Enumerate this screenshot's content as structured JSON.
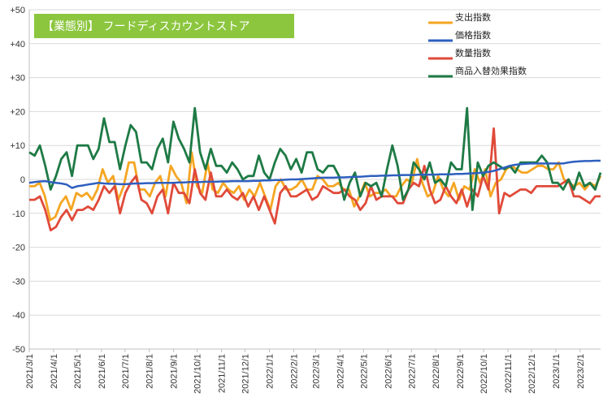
{
  "chart_data": {
    "type": "line",
    "title": "【業態別】 フードディスカウントストア",
    "title_bg": "#8cc63f",
    "ylim": [
      -50,
      50
    ],
    "yticks": [
      "+50",
      "+40",
      "+30",
      "+20",
      "+10",
      "0",
      "-10",
      "-20",
      "-30",
      "-40",
      "-50"
    ],
    "grid": "horizontal",
    "legend_position": "top-right",
    "x_start": "2021-03-01",
    "x_end": "2023-02-27",
    "x_tick_labels": [
      "2021/3/1",
      "2021/4/1",
      "2021/5/1",
      "2021/6/1",
      "2021/7/1",
      "2021/8/1",
      "2021/9/1",
      "2021/10/1",
      "2021/11/1",
      "2021/12/1",
      "2022/1/1",
      "2022/2/1",
      "2022/3/1",
      "2022/4/1",
      "2022/5/1",
      "2022/6/1",
      "2022/7/1",
      "2022/8/1",
      "2022/9/1",
      "2022/10/1",
      "2022/11/1",
      "2022/12/1",
      "2023/1/1",
      "2023/2/1"
    ],
    "series": [
      {
        "name": "支出指数",
        "color": "#f5a623",
        "values": [
          -2,
          -2,
          -1,
          -5,
          -12,
          -11,
          -7,
          -5,
          -9,
          -4,
          -5,
          -4,
          -6,
          -3,
          3,
          -1,
          1,
          -6,
          -2,
          5,
          5,
          -3,
          -3,
          -5,
          -1,
          1,
          -5,
          4,
          1,
          -1,
          -7,
          8,
          -2,
          -4,
          5,
          -3,
          -4,
          -1,
          -3,
          -4,
          -2,
          -6,
          -3,
          -5,
          -1,
          -5,
          -9,
          -2,
          0,
          -3,
          -3,
          -2,
          0,
          -3,
          -3,
          1,
          0,
          -2,
          -2,
          -1,
          -3,
          -3,
          -8,
          -5,
          -1,
          -5,
          -4,
          -4,
          -3,
          -5,
          -5,
          -2,
          0,
          -1,
          6,
          -1,
          -5,
          -4,
          1,
          -3,
          -5,
          -1,
          -6,
          -2,
          -3,
          3,
          -1,
          3,
          -5,
          -1,
          0,
          3,
          4,
          3,
          2,
          2,
          3,
          4,
          4,
          3,
          3,
          5,
          0,
          -1,
          -2,
          -1,
          -3,
          -1,
          -2,
          1
        ]
      },
      {
        "name": "価格指数",
        "color": "#2e5fbf",
        "values": [
          -1,
          -0.8,
          -0.6,
          -0.5,
          -0.8,
          -1,
          -1.2,
          -1.5,
          -2.5,
          -2,
          -1.8,
          -1.5,
          -1.3,
          -1,
          -1.2,
          -1.3,
          -1.3,
          -1.4,
          -1.4,
          -1.3,
          -1.2,
          -1.2,
          -1.1,
          -1.1,
          -1,
          -1,
          -1,
          -1,
          -0.9,
          -0.9,
          -0.8,
          -0.8,
          -0.8,
          -0.7,
          -0.7,
          -0.7,
          -0.6,
          -0.6,
          -0.5,
          -0.5,
          -0.5,
          -0.5,
          -0.4,
          -0.4,
          -0.3,
          -0.3,
          -0.2,
          -0.2,
          -0.1,
          0,
          0,
          0.1,
          0.2,
          0.3,
          0.4,
          0.5,
          0.5,
          0.5,
          0.6,
          0.6,
          0.7,
          0.8,
          0.8,
          0.9,
          1,
          1,
          1.1,
          1.1,
          1.2,
          1.2,
          1.3,
          1.3,
          1.3,
          1.4,
          1.4,
          1.4,
          1.4,
          1.5,
          1.5,
          1.5,
          1.6,
          1.6,
          1.7,
          1.8,
          1.9,
          2,
          2.2,
          2.5,
          3,
          3.5,
          4,
          4.3,
          4.5,
          4.6,
          4.7,
          4.7,
          4.7,
          4.7,
          4.7,
          4.7,
          4.7,
          5,
          5.2,
          5.3,
          5.4,
          5.4,
          5.5,
          5.5
        ]
      },
      {
        "name": "数量指数",
        "color": "#e04a3a",
        "values": [
          -6,
          -6,
          -5,
          -9,
          -15,
          -14,
          -11,
          -9,
          -12,
          -9,
          -9,
          -8,
          -9,
          -6,
          -2,
          -4,
          -2,
          -10,
          -4,
          -1,
          1,
          -6,
          -7,
          -10,
          -5,
          -3,
          -10,
          -1,
          -4,
          -4,
          -7,
          3,
          -4,
          -6,
          2,
          -5,
          -5,
          -3,
          -5,
          -6,
          -4,
          -8,
          -5,
          -9,
          -5,
          -9,
          -13,
          -4,
          -2,
          -5,
          -5,
          -4,
          -3,
          -6,
          -5,
          -2,
          -3,
          -4,
          -4,
          -3,
          -5,
          -6,
          -9,
          -7,
          -2,
          -6,
          -5,
          -5,
          -5,
          -7,
          -7,
          -3,
          -1,
          -2,
          4,
          -3,
          -7,
          -6,
          -2,
          -5,
          -7,
          -3,
          -8,
          -3,
          -5,
          1,
          -3,
          15,
          -10,
          -4,
          -5,
          -4,
          -3,
          -3,
          -4,
          -2,
          -2,
          -2,
          -2,
          -2,
          -1,
          0,
          -5,
          -5,
          -6,
          -7,
          -5,
          -5
        ]
      },
      {
        "name": "商品入替効果指数",
        "color": "#1e7a45",
        "values": [
          8,
          7,
          10,
          4,
          -3,
          1,
          6,
          8,
          1,
          10,
          10,
          10,
          6,
          9,
          18,
          11,
          11,
          3,
          10,
          16,
          14,
          5,
          5,
          3,
          9,
          12,
          5,
          17,
          12,
          9,
          5,
          21,
          8,
          3,
          9,
          4,
          4,
          2,
          5,
          3,
          0,
          1,
          1,
          7,
          2,
          0,
          5,
          9,
          7,
          3,
          6,
          2,
          8,
          8,
          3,
          2,
          4,
          4,
          1,
          -6,
          -1,
          2,
          -5,
          -1,
          -2,
          -1,
          -5,
          3,
          10,
          4,
          -6,
          -3,
          5,
          3,
          0,
          5,
          -1,
          0,
          -2,
          5,
          3,
          3,
          21,
          -9,
          5,
          1,
          4,
          5,
          4,
          3,
          4,
          2,
          5,
          5,
          5,
          5,
          7,
          5,
          -1,
          -1,
          -3,
          0,
          -3,
          2,
          -2,
          -1,
          -3,
          2
        ]
      }
    ]
  }
}
